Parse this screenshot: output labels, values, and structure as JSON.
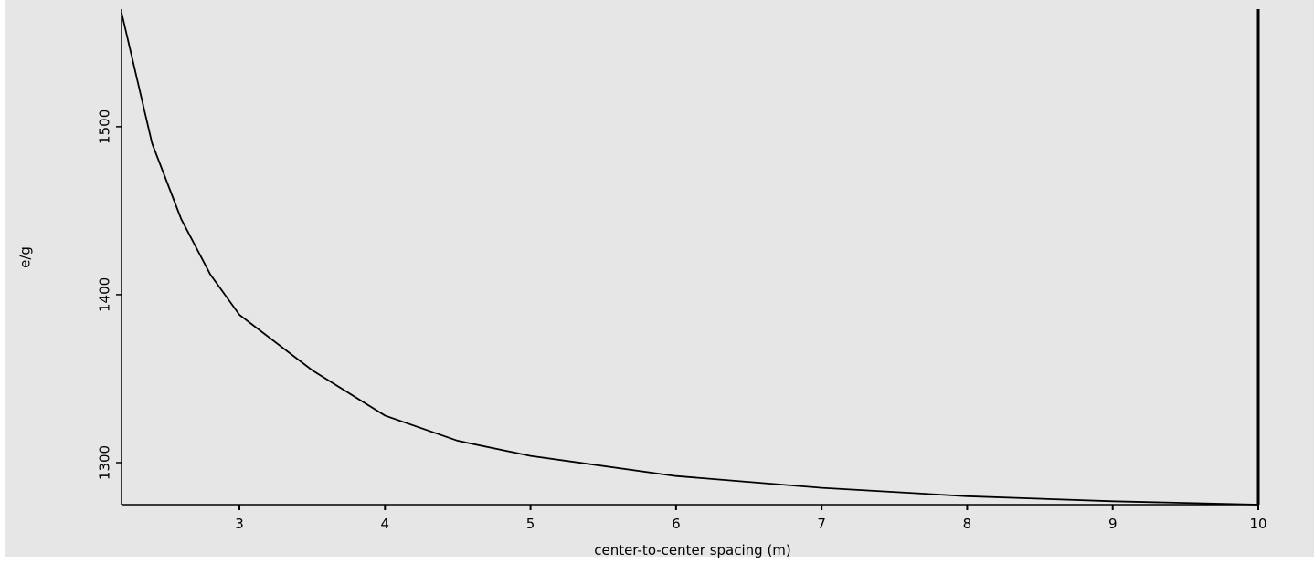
{
  "chart_data": {
    "type": "line",
    "x_label": "center-to-center spacing (m)",
    "y_label": "e/g",
    "x": [
      2.19,
      2.4,
      2.6,
      2.8,
      3,
      3.5,
      4,
      4.5,
      5,
      6,
      7,
      8,
      9,
      10
    ],
    "series": [
      {
        "name": "e/g",
        "color": "#000000",
        "values": [
          1568,
          1490,
          1445,
          1412,
          1388,
          1355,
          1328,
          1313,
          1304,
          1292,
          1285,
          1280,
          1277,
          1275
        ]
      }
    ],
    "xlim": [
      2.19,
      10
    ],
    "xticks": [
      3,
      4,
      5,
      6,
      7,
      8,
      9,
      10
    ],
    "ylim": [
      1275,
      1570
    ],
    "yticks": [
      1300,
      1400,
      1500
    ]
  }
}
